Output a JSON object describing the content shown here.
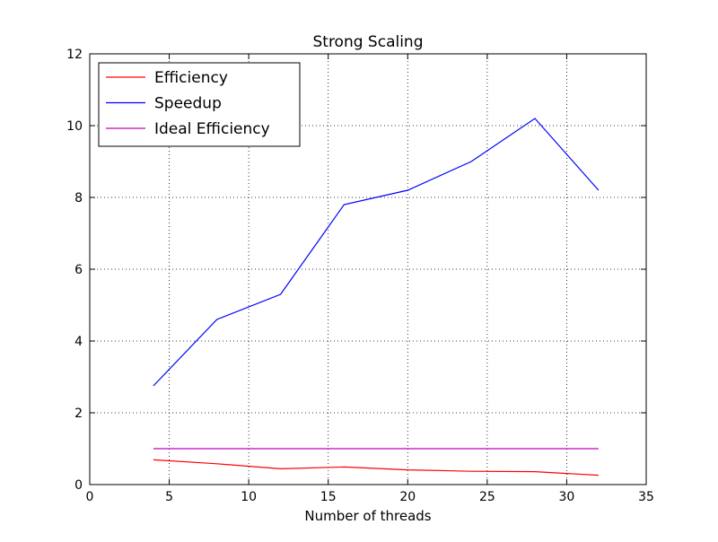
{
  "chart_data": {
    "type": "line",
    "title": "Strong Scaling",
    "xlabel": "Number of threads",
    "ylabel": "",
    "xlim": [
      0,
      35
    ],
    "ylim": [
      0,
      12
    ],
    "xticks": [
      0,
      5,
      10,
      15,
      20,
      25,
      30,
      35
    ],
    "yticks": [
      0,
      2,
      4,
      6,
      8,
      10,
      12
    ],
    "grid": true,
    "legend_position": "top-left",
    "x": [
      4,
      8,
      12,
      16,
      20,
      24,
      28,
      32
    ],
    "series": [
      {
        "name": "Efficiency",
        "color": "#ff0000",
        "values": [
          0.69,
          0.58,
          0.44,
          0.49,
          0.41,
          0.37,
          0.36,
          0.26
        ]
      },
      {
        "name": "Speedup",
        "color": "#0000ff",
        "values": [
          2.75,
          4.6,
          5.3,
          7.8,
          8.2,
          9.0,
          10.2,
          8.2
        ]
      },
      {
        "name": "Ideal Efficiency",
        "color": "#bf00bf",
        "values": [
          1,
          1,
          1,
          1,
          1,
          1,
          1,
          1
        ]
      }
    ]
  }
}
